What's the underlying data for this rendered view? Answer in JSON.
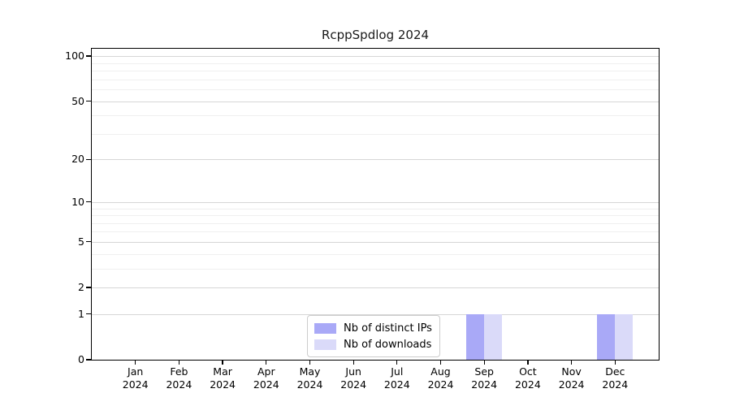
{
  "figure": {
    "title": "RcppSpdlog 2024"
  },
  "colors": {
    "distinct_ips": "#a9a9f7",
    "downloads": "#dadaf9",
    "grid_major": "#d6d6d6",
    "grid_minor": "#efefef",
    "axis": "#000000",
    "background": "#ffffff"
  },
  "legend": {
    "items": [
      {
        "label": "Nb of distinct IPs",
        "color_key": "distinct_ips"
      },
      {
        "label": "Nb of downloads",
        "color_key": "downloads"
      }
    ]
  },
  "chart_data": {
    "type": "bar",
    "title": "RcppSpdlog 2024",
    "categories": [
      "Jan 2024",
      "Feb 2024",
      "Mar 2024",
      "Apr 2024",
      "May 2024",
      "Jun 2024",
      "Jul 2024",
      "Aug 2024",
      "Sep 2024",
      "Oct 2024",
      "Nov 2024",
      "Dec 2024"
    ],
    "series": [
      {
        "name": "Nb of distinct IPs",
        "color_key": "distinct_ips",
        "values": [
          0,
          0,
          0,
          0,
          0,
          0,
          0,
          0,
          1,
          0,
          0,
          1
        ]
      },
      {
        "name": "Nb of downloads",
        "color_key": "downloads",
        "values": [
          0,
          0,
          0,
          0,
          0,
          0,
          0,
          0,
          1,
          0,
          0,
          1
        ]
      }
    ],
    "xlabel": "",
    "ylabel": "",
    "yscale": "log1p",
    "ylim": [
      0,
      112
    ],
    "y_major_ticks": [
      0,
      1,
      2,
      5,
      10,
      20,
      50,
      100
    ],
    "y_minor_gridlines": [
      3,
      4,
      6,
      7,
      8,
      9,
      30,
      40,
      60,
      70,
      80,
      90
    ],
    "grid": true,
    "legend_position": "lower center"
  }
}
